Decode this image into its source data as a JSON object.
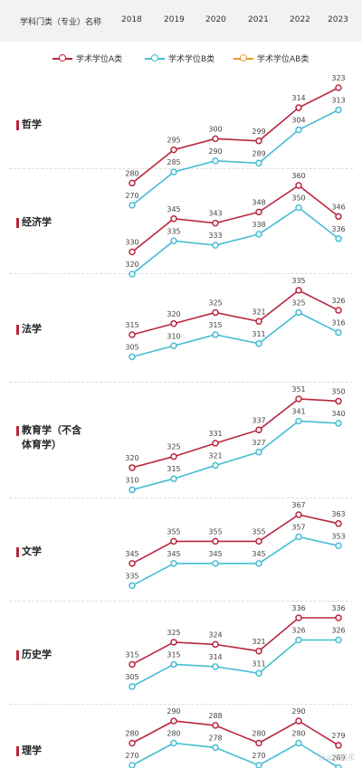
{
  "header": {
    "first_col": "学科门类（专业）名称",
    "years": [
      "2018",
      "2019",
      "2020",
      "2021",
      "2022",
      "2023"
    ]
  },
  "legend": {
    "items": [
      {
        "label": "学术学位A类",
        "color": "#b8273c"
      },
      {
        "label": "学术学位B类",
        "color": "#45bdd3"
      },
      {
        "label": "学术学位AB类",
        "color": "#e49b2d"
      }
    ]
  },
  "watermark": "什么值得买",
  "chart_data": {
    "type": "line",
    "x": [
      "2018",
      "2019",
      "2020",
      "2021",
      "2022",
      "2023"
    ],
    "panels": [
      {
        "category": "哲学",
        "series": [
          {
            "name": "学术学位A类",
            "values": [
              280,
              295,
              300,
              299,
              314,
              323
            ]
          },
          {
            "name": "学术学位B类",
            "values": [
              270,
              285,
              290,
              289,
              304,
              313
            ]
          }
        ]
      },
      {
        "category": "经济学",
        "series": [
          {
            "name": "学术学位A类",
            "values": [
              330,
              345,
              343,
              348,
              360,
              346
            ]
          },
          {
            "name": "学术学位B类",
            "values": [
              320,
              335,
              333,
              338,
              350,
              336
            ]
          }
        ]
      },
      {
        "category": "法学",
        "series": [
          {
            "name": "学术学位A类",
            "values": [
              315,
              320,
              325,
              321,
              335,
              326
            ]
          },
          {
            "name": "学术学位B类",
            "values": [
              305,
              310,
              315,
              311,
              325,
              316
            ]
          }
        ]
      },
      {
        "category": "教育学（不含\n体育学）",
        "series": [
          {
            "name": "学术学位A类",
            "values": [
              320,
              325,
              331,
              337,
              351,
              350
            ]
          },
          {
            "name": "学术学位B类",
            "values": [
              310,
              315,
              321,
              327,
              341,
              340
            ]
          }
        ]
      },
      {
        "category": "文学",
        "series": [
          {
            "name": "学术学位A类",
            "values": [
              345,
              355,
              355,
              355,
              367,
              363
            ]
          },
          {
            "name": "学术学位B类",
            "values": [
              335,
              345,
              345,
              345,
              357,
              353
            ]
          }
        ]
      },
      {
        "category": "历史学",
        "series": [
          {
            "name": "学术学位A类",
            "values": [
              315,
              325,
              324,
              321,
              336,
              336
            ]
          },
          {
            "name": "学术学位B类",
            "values": [
              305,
              315,
              314,
              311,
              326,
              326
            ]
          }
        ]
      },
      {
        "category": "理学",
        "series": [
          {
            "name": "学术学位A类",
            "values": [
              280,
              290,
              288,
              280,
              290,
              279
            ]
          },
          {
            "name": "学术学位B类",
            "values": [
              270,
              280,
              278,
              270,
              280,
              269
            ]
          }
        ]
      }
    ]
  }
}
